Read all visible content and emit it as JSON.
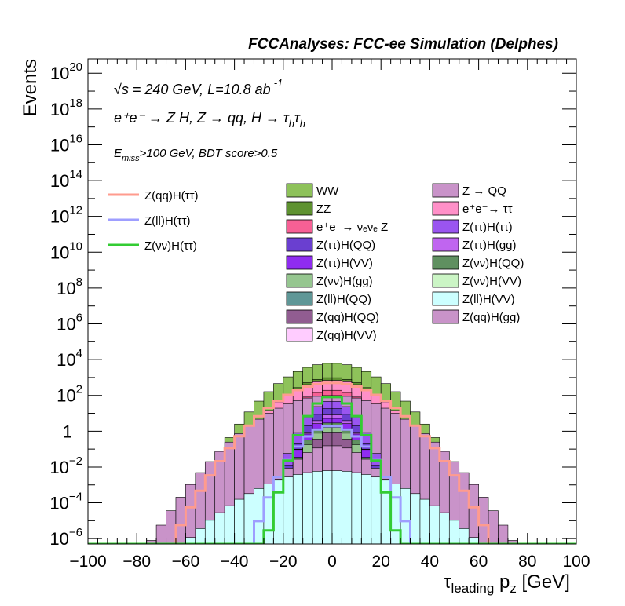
{
  "chart_data": {
    "type": "histogram",
    "title": "FCCAnalyses: FCC-ee Simulation (Delphes)",
    "annotations": {
      "line1": "√s = 240 GeV, L=10.8 ab",
      "line1_sup": "-1",
      "line2": "e⁺e⁻ → Z H, Z → qq, H → τ",
      "line2_sub_h": "h",
      "line2_tail": "τ",
      "line3_prefix": "E",
      "line3_sub": "miss",
      "line3": ">100 GeV, BDT score>0.5"
    },
    "ylabel": "Events",
    "xlabel_main": "τ",
    "xlabel_sub": "leading",
    "xlabel_p": " p",
    "xlabel_psub": "z",
    "xlabel_unit": " [GeV]",
    "x_range": [
      -100,
      100
    ],
    "y_range_log10": [
      -6.3,
      20.8
    ],
    "y_scale": "log",
    "x_ticks": [
      {
        "v": -100,
        "label": "−100"
      },
      {
        "v": -80,
        "label": "−80"
      },
      {
        "v": -60,
        "label": "−60"
      },
      {
        "v": -40,
        "label": "−40"
      },
      {
        "v": -20,
        "label": "−20"
      },
      {
        "v": 0,
        "label": "0"
      },
      {
        "v": 20,
        "label": "20"
      },
      {
        "v": 40,
        "label": "40"
      },
      {
        "v": 60,
        "label": "60"
      },
      {
        "v": 80,
        "label": "80"
      },
      {
        "v": 100,
        "label": "100"
      }
    ],
    "y_ticks": [
      {
        "e": -6,
        "base": "10",
        "exp": "−6"
      },
      {
        "e": -4,
        "base": "10",
        "exp": "−4"
      },
      {
        "e": -2,
        "base": "10",
        "exp": "−2"
      },
      {
        "e": 0,
        "base": "1",
        "exp": ""
      },
      {
        "e": 2,
        "base": "10",
        "exp": "2"
      },
      {
        "e": 4,
        "base": "10",
        "exp": "4"
      },
      {
        "e": 6,
        "base": "10",
        "exp": "6"
      },
      {
        "e": 8,
        "base": "10",
        "exp": "8"
      },
      {
        "e": 10,
        "base": "10",
        "exp": "10"
      },
      {
        "e": 12,
        "base": "10",
        "exp": "12"
      },
      {
        "e": 14,
        "base": "10",
        "exp": "14"
      },
      {
        "e": 16,
        "base": "10",
        "exp": "16"
      },
      {
        "e": 18,
        "base": "10",
        "exp": "18"
      },
      {
        "e": 20,
        "base": "10",
        "exp": "20"
      }
    ],
    "bin_width": 4,
    "legend_signal": [
      {
        "name": "Z(qq)H(ττ)",
        "color": "#ff9b8e"
      },
      {
        "name": "Z(ll)H(ττ)",
        "color": "#9e9eff"
      },
      {
        "name": "Z(νν)H(ττ)",
        "color": "#33cc33"
      }
    ],
    "legend_bkg": [
      {
        "name": "WW",
        "color": "#8ec25a"
      },
      {
        "name": "Z → QQ",
        "color": "#c993c9"
      },
      {
        "name": "ZZ",
        "color": "#5e9230"
      },
      {
        "name": "e⁺e⁻→ ττ",
        "color": "#ff90c8"
      },
      {
        "name": "e⁺e⁻→ νₑνₑ Z",
        "color": "#f76095"
      },
      {
        "name": "Z(ττ)H(ττ)",
        "color": "#9a55f0"
      },
      {
        "name": "Z(ττ)H(QQ)",
        "color": "#6a3fd0"
      },
      {
        "name": "Z(ττ)H(gg)",
        "color": "#c065f0"
      },
      {
        "name": "Z(ττ)H(VV)",
        "color": "#8f2cf0"
      },
      {
        "name": "Z(νν)H(QQ)",
        "color": "#5f9060"
      },
      {
        "name": "Z(νν)H(gg)",
        "color": "#96c690"
      },
      {
        "name": "Z(νν)H(VV)",
        "color": "#cbf5c5"
      },
      {
        "name": "Z(ll)H(QQ)",
        "color": "#5f9797"
      },
      {
        "name": "Z(ll)H(VV)",
        "color": "#ccffff"
      },
      {
        "name": "Z(qq)H(QQ)",
        "color": "#915d91"
      },
      {
        "name": "Z(qq)H(gg)",
        "color": "#c993c9"
      },
      {
        "name": "Z(qq)H(VV)",
        "color": "#ffccff"
      }
    ],
    "stack_levels": [
      {
        "name": "WW",
        "color": "#8ec25a",
        "peak": 3.8,
        "spread": 20.6,
        "edge": 96
      },
      {
        "name": "ZZ",
        "color": "#5e9230",
        "peak": 3.0,
        "spread": 18.6,
        "edge": 96
      },
      {
        "name": "e⁺e⁻→ ττ",
        "color": "#ff90c8",
        "peak": 2.85,
        "spread": 20,
        "edge": 88
      },
      {
        "name": "e⁺e⁻→ νₑνₑ Z",
        "color": "#f76095",
        "peak": 2.3,
        "spread": 16,
        "edge": 72
      },
      {
        "name": "Z → QQ",
        "color": "#c993c9",
        "peak": 2.0,
        "spread": 26,
        "edge": 92
      },
      {
        "name": "Z(ττ)H(ττ)",
        "color": "#9a55f0",
        "peak": 1.7,
        "spread": 10.5,
        "edge": 72
      },
      {
        "name": "Z(ττ)H(QQ)",
        "color": "#6a3fd0",
        "peak": 1.3,
        "spread": 10,
        "edge": 68
      },
      {
        "name": "Z(ττ)H(gg)",
        "color": "#c065f0",
        "peak": 0.95,
        "spread": 10,
        "edge": 68
      },
      {
        "name": "Z(ττ)H(VV)",
        "color": "#8f2cf0",
        "peak": 0.75,
        "spread": 10.5,
        "edge": 68
      },
      {
        "name": "Z(νν)H(QQ)",
        "color": "#5f9060",
        "peak": 0.5,
        "spread": 10,
        "edge": 64
      },
      {
        "name": "Z(νν)H(gg)",
        "color": "#96c690",
        "peak": 0.25,
        "spread": 10,
        "edge": 60
      },
      {
        "name": "Z(qq)H(QQ)",
        "color": "#915d91",
        "peak": 0.0,
        "spread": 9,
        "edge": 64
      },
      {
        "name": "Z(qq)H(gg)",
        "color": "#c993c9",
        "peak": -0.8,
        "spread": 16,
        "edge": 80
      },
      {
        "name": "Z(ll)H(VV)",
        "color": "#ccffff",
        "peak": -2.2,
        "spread": 30,
        "edge": 84
      }
    ],
    "signal_curves": [
      {
        "name": "Z(qq)H(ττ)",
        "color": "#ff9b8e",
        "peak": 2.7,
        "spread": 22,
        "edge": 92
      },
      {
        "name": "Z(ll)H(ττ)",
        "color": "#9e9eff",
        "peak": 0.3,
        "spread": 13,
        "edge": 84
      },
      {
        "name": "Z(νν)H(ττ)",
        "color": "#33cc33",
        "peak": 1.95,
        "spread": 9.5,
        "edge": 72
      }
    ]
  }
}
